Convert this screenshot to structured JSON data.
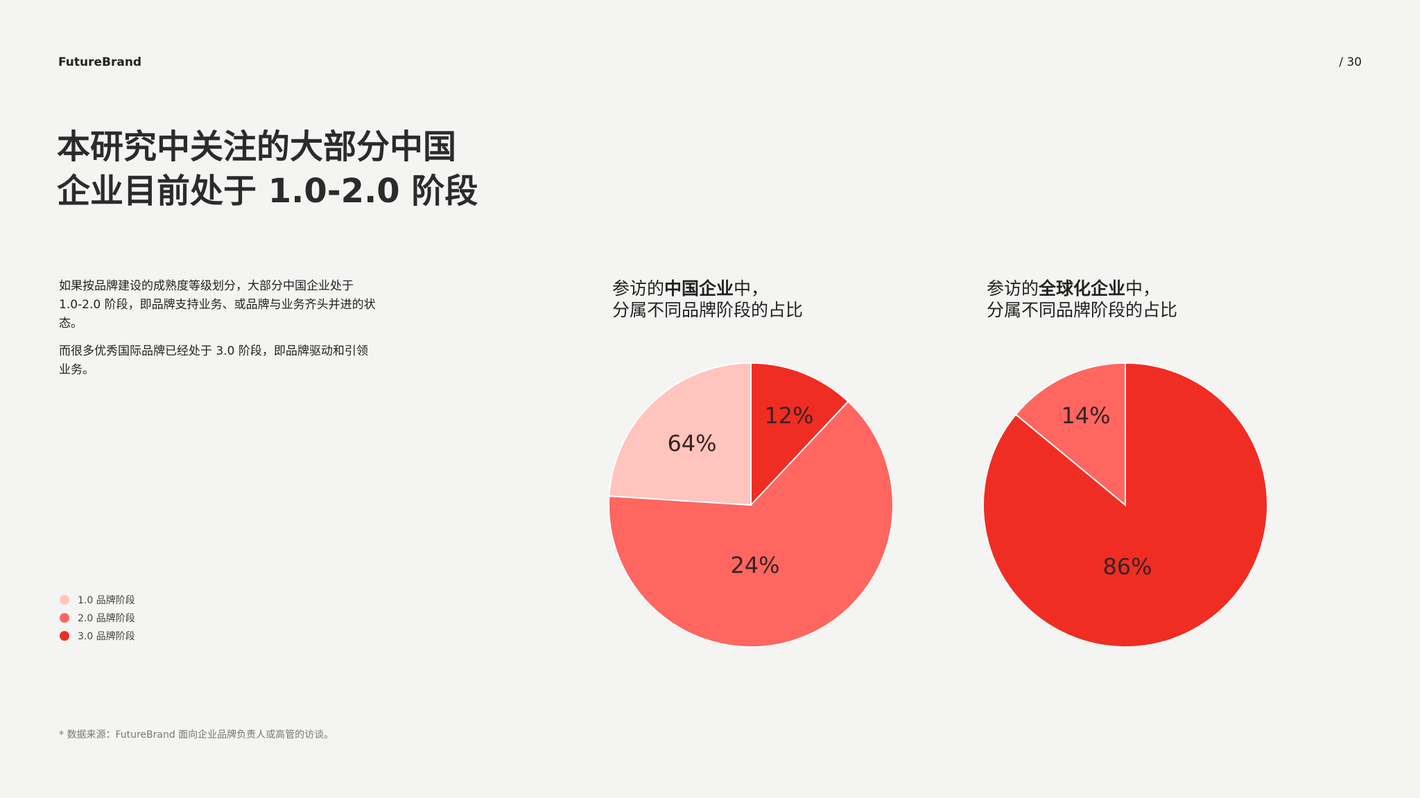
{
  "header": {
    "brand": "FutureBrand",
    "page_number": "/ 30"
  },
  "title": {
    "line1": "本研究中关注的大部分中国",
    "line2": "企业目前处于 1.0-2.0 阶段"
  },
  "body": {
    "paragraph1": "如果按品牌建设的成熟度等级划分，大部分中国企业处于 1.0-2.0 阶段，即品牌支持业务、或品牌与业务齐头并进的状态。",
    "paragraph2": "而很多优秀国际品牌已经处于 3.0 阶段，即品牌驱动和引领业务。"
  },
  "legend": [
    {
      "label": "1.0 品牌阶段",
      "color": "#ffc4bd"
    },
    {
      "label": "2.0 品牌阶段",
      "color": "#ff6660"
    },
    {
      "label": "3.0 品牌阶段",
      "color": "#f02d22"
    }
  ],
  "footer": {
    "source": "* 数据来源：FutureBrand 面向企业品牌负责人或高管的访谈。"
  },
  "chart_data": [
    {
      "type": "pie",
      "title_prefix": "参访的",
      "title_bold": "中国企业",
      "title_suffix": "中，",
      "title_line2": "分属不同品牌阶段的占比",
      "slices": [
        {
          "label": "3.0 品牌阶段",
          "value": 12,
          "text": "12%",
          "color": "#f02d22"
        },
        {
          "label": "2.0 品牌阶段",
          "value": 64,
          "text": "64%",
          "color": "#ff6660"
        },
        {
          "label": "1.0 品牌阶段",
          "value": 24,
          "text": "24%",
          "color": "#ffc4bd"
        }
      ]
    },
    {
      "type": "pie",
      "title_prefix": "参访的",
      "title_bold": "全球化企业",
      "title_suffix": "中，",
      "title_line2": "分属不同品牌阶段的占比",
      "slices": [
        {
          "label": "3.0 品牌阶段",
          "value": 86,
          "text": "86%",
          "color": "#f02d22"
        },
        {
          "label": "2.0 品牌阶段",
          "value": 14,
          "text": "14%",
          "color": "#ff6660"
        }
      ]
    }
  ]
}
